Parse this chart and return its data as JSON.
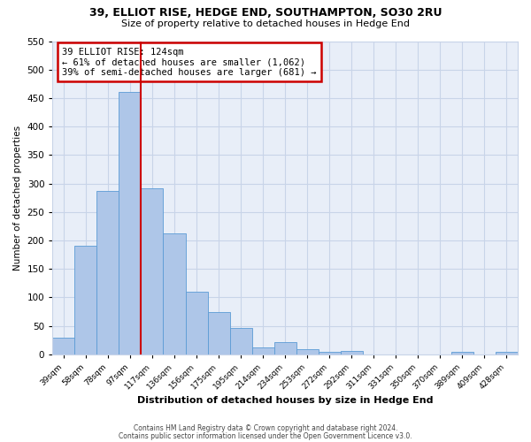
{
  "title": "39, ELLIOT RISE, HEDGE END, SOUTHAMPTON, SO30 2RU",
  "subtitle": "Size of property relative to detached houses in Hedge End",
  "xlabel": "Distribution of detached houses by size in Hedge End",
  "ylabel": "Number of detached properties",
  "bar_labels": [
    "39sqm",
    "58sqm",
    "78sqm",
    "97sqm",
    "117sqm",
    "136sqm",
    "156sqm",
    "175sqm",
    "195sqm",
    "214sqm",
    "234sqm",
    "253sqm",
    "272sqm",
    "292sqm",
    "311sqm",
    "331sqm",
    "350sqm",
    "370sqm",
    "389sqm",
    "409sqm",
    "428sqm"
  ],
  "bar_values": [
    30,
    190,
    287,
    460,
    292,
    212,
    110,
    75,
    46,
    12,
    22,
    9,
    5,
    6,
    0,
    0,
    0,
    0,
    5,
    0,
    5
  ],
  "bar_color": "#aec6e8",
  "bar_edge_color": "#5b9bd5",
  "grid_color": "#c8d4e8",
  "background_color": "#e8eef8",
  "vline_index": 4,
  "vline_color": "#cc0000",
  "ylim": [
    0,
    550
  ],
  "yticks": [
    0,
    50,
    100,
    150,
    200,
    250,
    300,
    350,
    400,
    450,
    500,
    550
  ],
  "annotation_title": "39 ELLIOT RISE: 124sqm",
  "annotation_line1": "← 61% of detached houses are smaller (1,062)",
  "annotation_line2": "39% of semi-detached houses are larger (681) →",
  "annotation_box_color": "#cc0000",
  "footer1": "Contains HM Land Registry data © Crown copyright and database right 2024.",
  "footer2": "Contains public sector information licensed under the Open Government Licence v3.0."
}
